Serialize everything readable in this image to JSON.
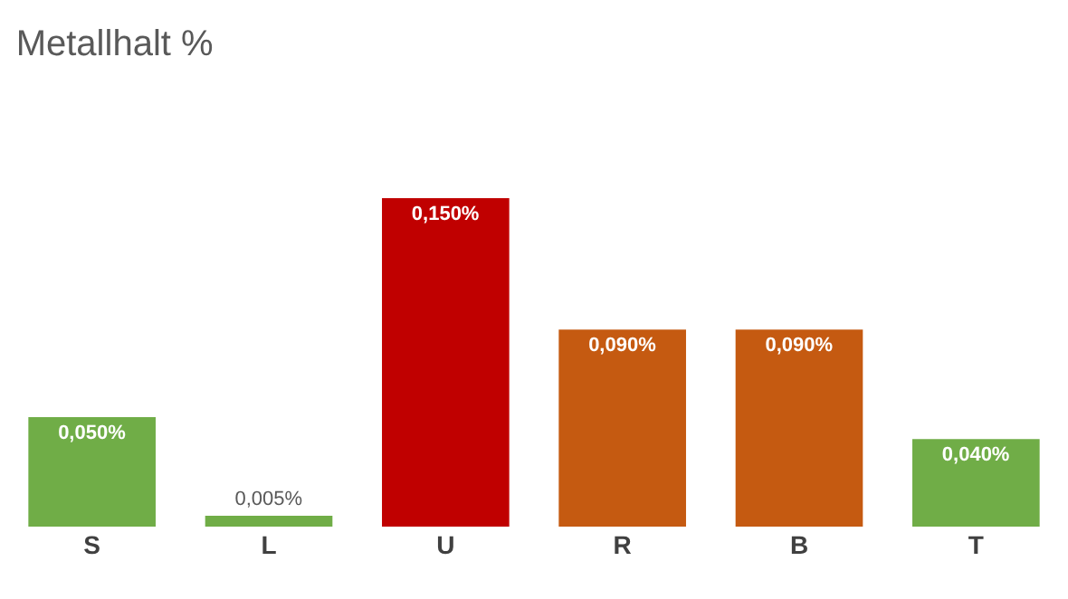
{
  "chart_data": {
    "type": "bar",
    "title": "Metallhalt %",
    "categories": [
      "S",
      "L",
      "U",
      "R",
      "B",
      "T"
    ],
    "values": [
      0.05,
      0.005,
      0.15,
      0.09,
      0.09,
      0.04
    ],
    "colors": [
      "#70ad47",
      "#70ad47",
      "#c00000",
      "#c55a11",
      "#c55a11",
      "#70ad47"
    ],
    "value_labels": [
      "0,050%",
      "0,005%",
      "0,150%",
      "0,090%",
      "0,090%",
      "0,040%"
    ],
    "grid": false
  }
}
